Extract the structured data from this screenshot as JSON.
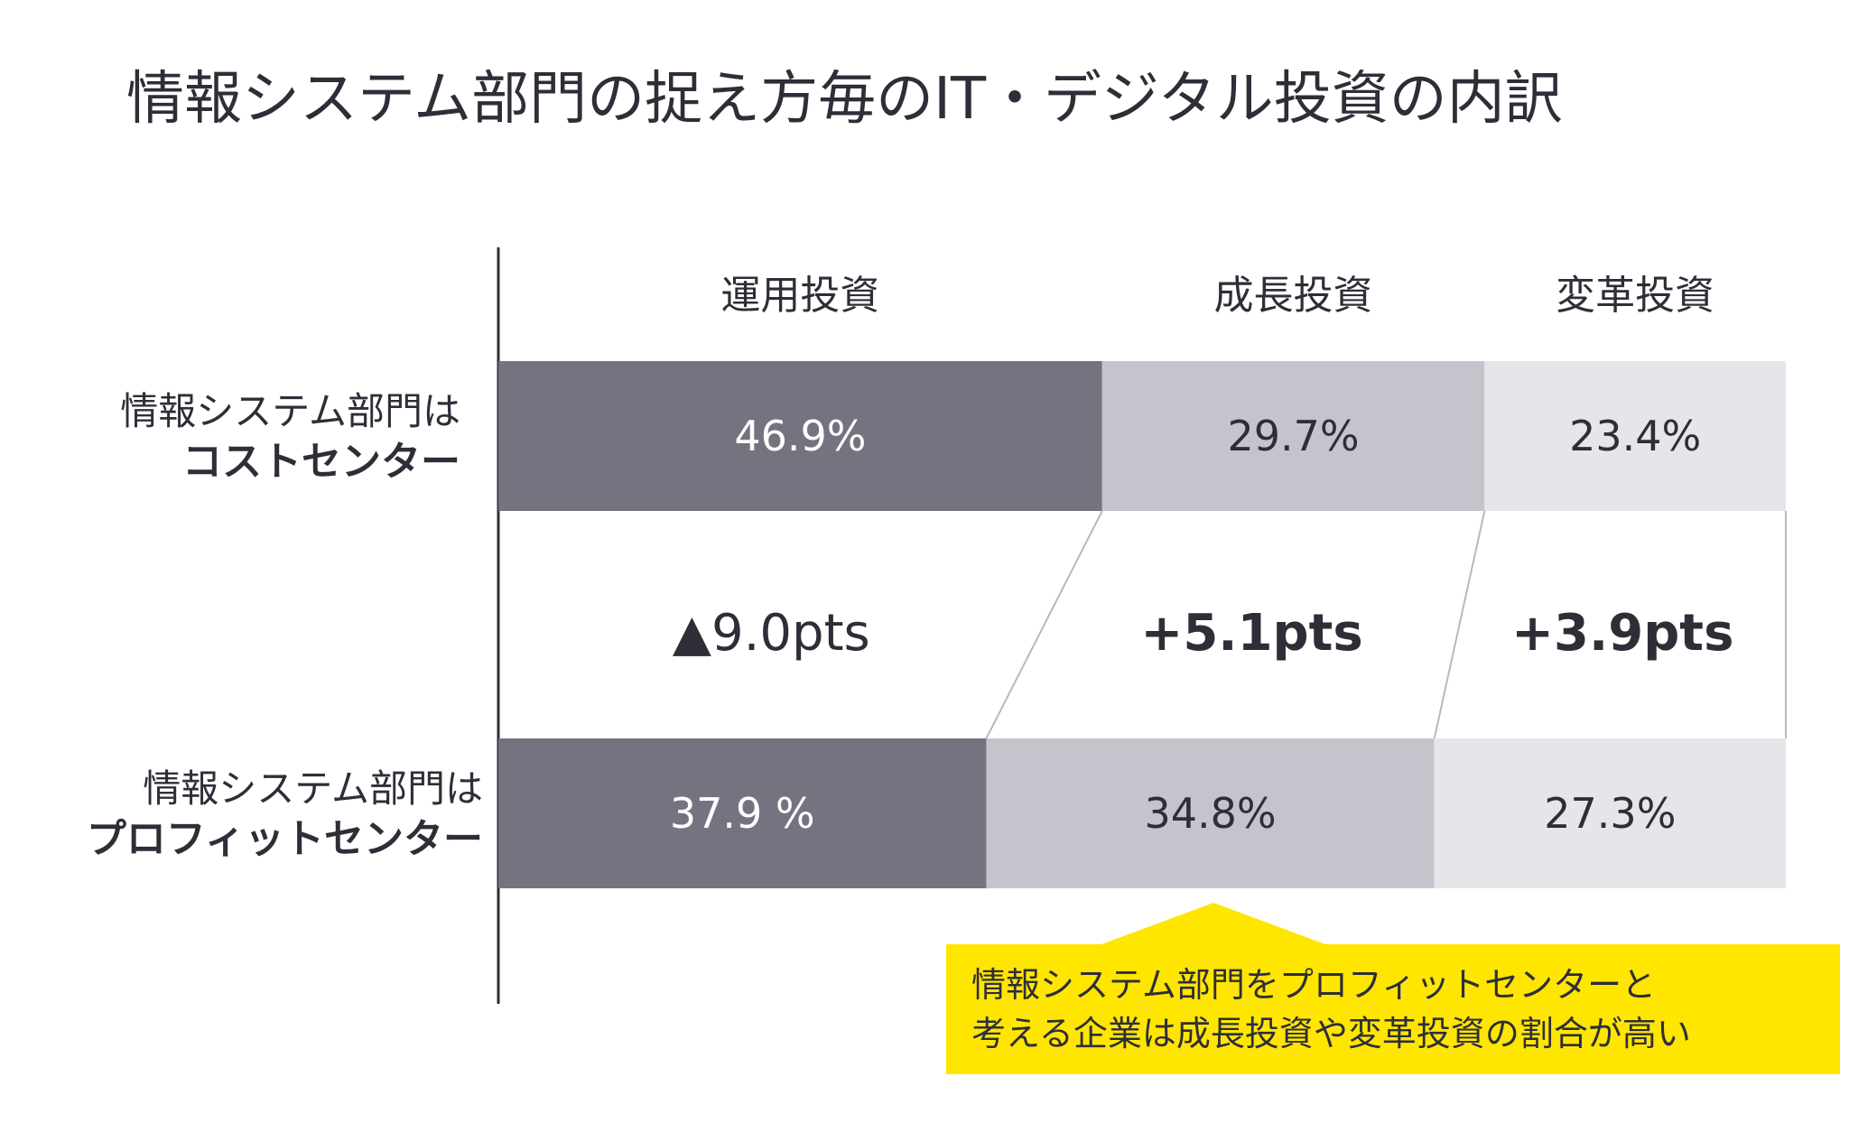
{
  "title": "情報システム部門の捉え方毎のIT・デジタル投資の内訳",
  "rows": [
    {
      "line1": "情報システム部門は",
      "line2": "コストセンター"
    },
    {
      "line1": "情報システム部門は",
      "line2": "プロフィットセンター"
    }
  ],
  "colors": {
    "operation": "#747480",
    "growth": "#c4c4cd",
    "transform": "#e6e6ea",
    "callout": "#ffe600",
    "text_dark": "#2e2e38",
    "text_light": "#ffffff"
  },
  "chart_data": {
    "type": "bar",
    "orientation": "horizontal",
    "stacked": true,
    "categories": [
      "コストセンター",
      "プロフィットセンター"
    ],
    "series": [
      {
        "name": "運用投資",
        "values": [
          46.9,
          37.9
        ],
        "labels": [
          "46.9%",
          "37.9 %"
        ]
      },
      {
        "name": "成長投資",
        "values": [
          29.7,
          34.8
        ],
        "labels": [
          "29.7%",
          "34.8%"
        ]
      },
      {
        "name": "変革投資",
        "values": [
          23.4,
          27.3
        ],
        "labels": [
          "23.4%",
          "27.3%"
        ]
      }
    ],
    "differences": [
      "▲9.0pts",
      "+5.1pts",
      "+3.9pts"
    ],
    "xlim": [
      0,
      100
    ],
    "legend": "top"
  },
  "callout": {
    "line1": "情報システム部門をプロフィットセンターと",
    "line2": "考える企業は成長投資や変革投資の割合が高い"
  }
}
